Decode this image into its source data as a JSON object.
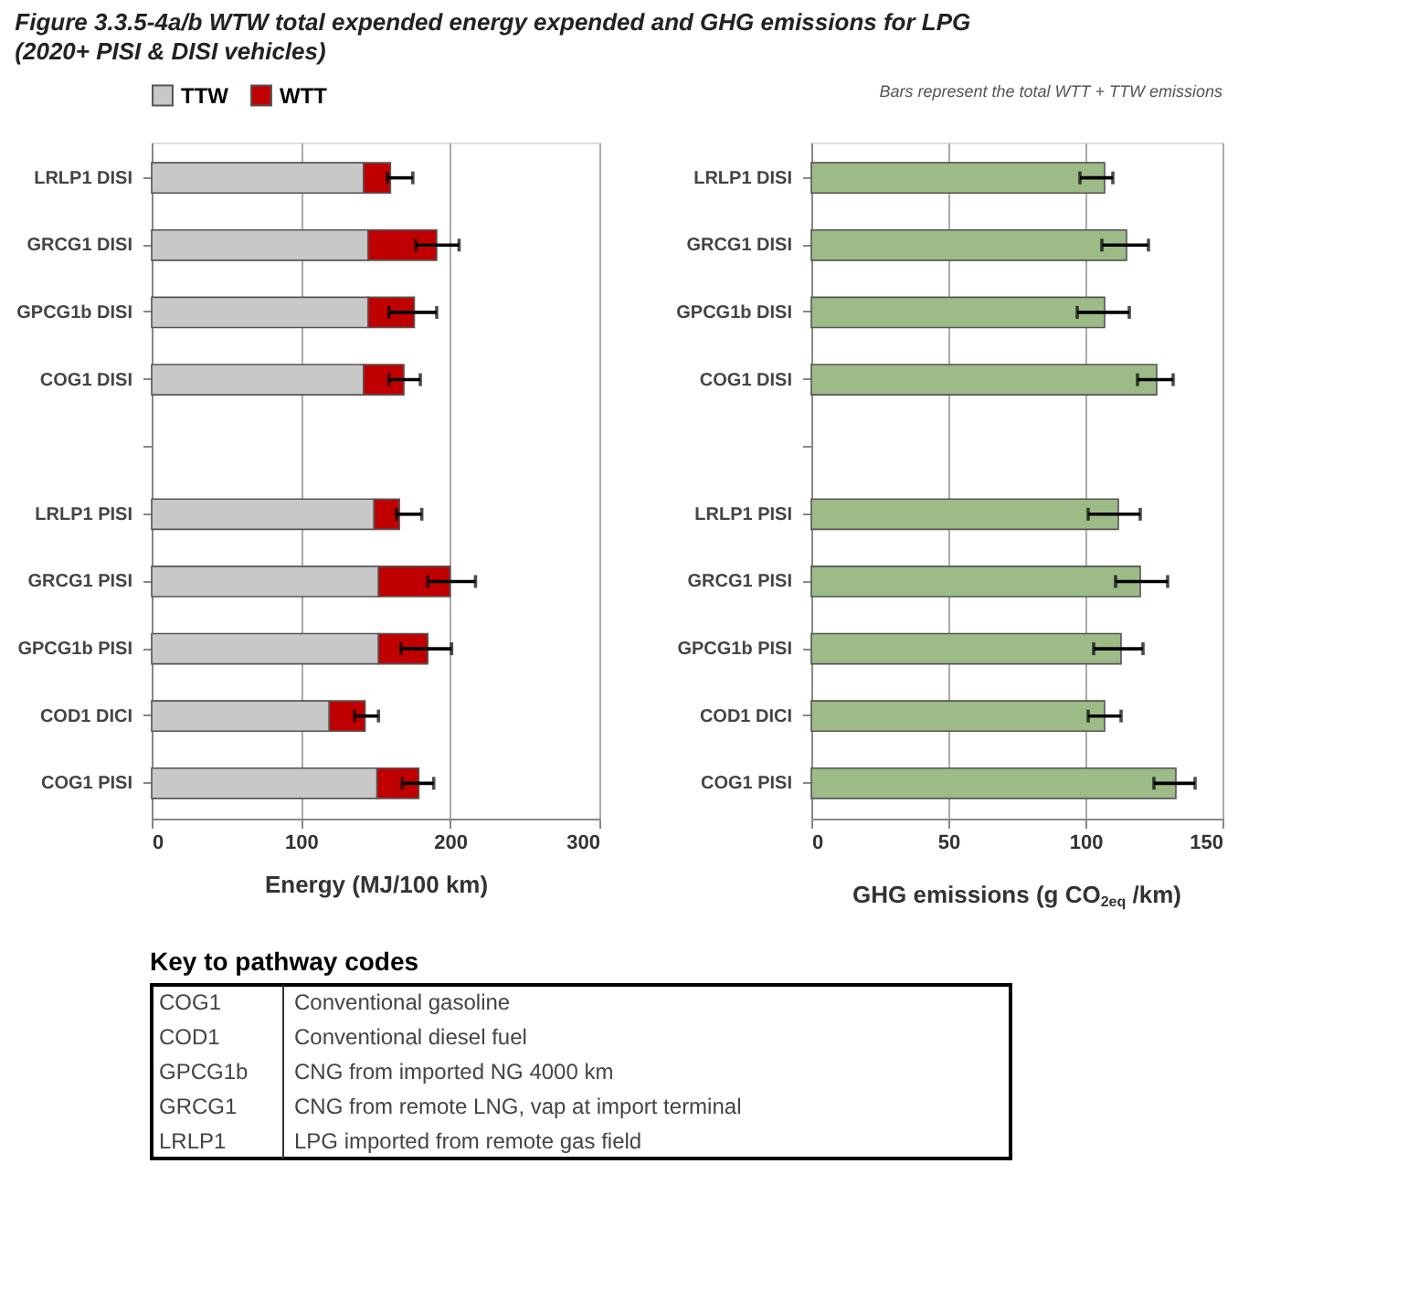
{
  "chart_data": [
    {
      "type": "bar",
      "title": "Figure 3.3.5-4a/b    WTW total expended energy expended and GHG emissions for LPG",
      "subtitle": "(2020+ PISI & DISI vehicles)",
      "orientation": "horizontal",
      "stacked": true,
      "xlabel": "Energy (MJ/100 km)",
      "xlim": [
        0,
        300
      ],
      "xticks": [
        0,
        100,
        200,
        300
      ],
      "grid": "x",
      "legend": "top",
      "categories": [
        "LRLP1 DISI",
        "GRCG1 DISI",
        "GPCG1b DISI",
        "COG1 DISI",
        null,
        "LRLP1 PISI",
        "GRCG1 PISI",
        "GPCG1b PISI",
        "COD1 DICI",
        "COG1 PISI"
      ],
      "series": [
        {
          "name": "TTW",
          "color": "#c8c8c8",
          "values": [
            142,
            145,
            145,
            142,
            null,
            149,
            152,
            152,
            119,
            151
          ]
        },
        {
          "name": "WTT",
          "color": "#c00000",
          "values": [
            18,
            46,
            31,
            27,
            null,
            17,
            48,
            33,
            24,
            28
          ],
          "errors": [
            [
              158,
              175
            ],
            [
              177,
              206
            ],
            [
              159,
              191
            ],
            [
              159,
              180
            ],
            null,
            [
              164,
              181
            ],
            [
              185,
              217
            ],
            [
              167,
              201
            ],
            [
              136,
              152
            ],
            [
              168,
              189
            ]
          ]
        }
      ]
    },
    {
      "type": "bar",
      "orientation": "horizontal",
      "xlabel": "GHG emissions (g CO$_{2eq}$ /km)",
      "xlim": [
        0,
        150
      ],
      "xticks": [
        0,
        50,
        100,
        150
      ],
      "grid": "x",
      "annotations": [
        "Bars represent the total WTT + TTW emissions"
      ],
      "categories": [
        "LRLP1 DISI",
        "GRCG1 DISI",
        "GPCG1b DISI",
        "COG1 DISI",
        null,
        "LRLP1 PISI",
        "GRCG1 PISI",
        "GPCG1b PISI",
        "COD1 DICI",
        "COG1 PISI"
      ],
      "series": [
        {
          "color": "#9cbb86",
          "values": [
            107,
            115,
            107,
            126,
            null,
            112,
            120,
            113,
            107,
            133
          ],
          "errors": [
            [
              98,
              110
            ],
            [
              106,
              123
            ],
            [
              97,
              116
            ],
            [
              119,
              132
            ],
            null,
            [
              101,
              120
            ],
            [
              111,
              130
            ],
            [
              103,
              121
            ],
            [
              101,
              113
            ],
            [
              125,
              140
            ]
          ]
        }
      ]
    },
    {
      "type": "other",
      "title": "Key to pathway codes",
      "annotations": [
        "COG1",
        "Conventional gasoline",
        "COD1",
        "Conventional diesel fuel",
        "GPCG1b",
        "CNG from imported NG 4000 km",
        "GRCG1",
        "CNG from remote LNG, vap at import terminal",
        "LRLP1",
        "LPG imported from remote gas field"
      ]
    }
  ]
}
